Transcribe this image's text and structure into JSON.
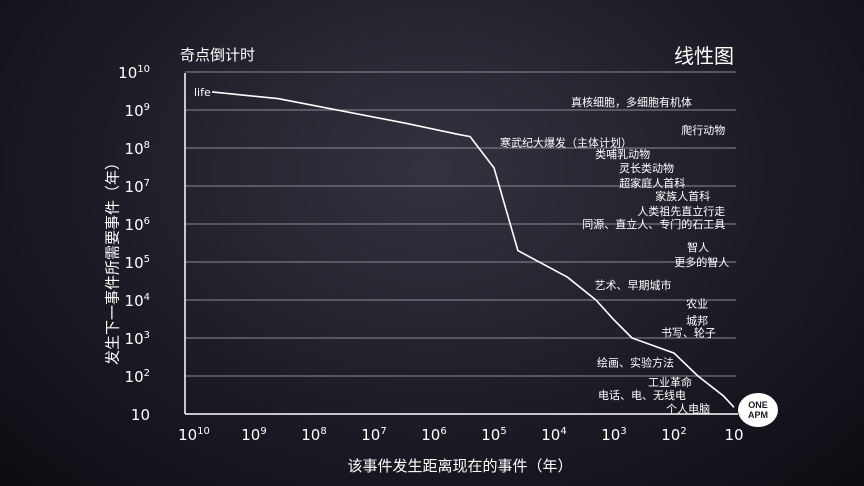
{
  "corner_title": "线性图",
  "logo": "ONE APM",
  "chart_data": {
    "type": "line",
    "title": "奇点倒计时",
    "xlabel": "该事件发生距离现在的事件（年）",
    "ylabel": "发生下一事件所需要事件（年）",
    "x_scale": "log-reversed",
    "y_scale": "log",
    "xlim": [
      10000000000,
      10
    ],
    "ylim": [
      10,
      10000000000
    ],
    "x_ticks": [
      {
        "base": "10",
        "exp": "10"
      },
      {
        "base": "10",
        "exp": "9"
      },
      {
        "base": "10",
        "exp": "8"
      },
      {
        "base": "10",
        "exp": "7"
      },
      {
        "base": "10",
        "exp": "6"
      },
      {
        "base": "10",
        "exp": "5"
      },
      {
        "base": "10",
        "exp": "4"
      },
      {
        "base": "10",
        "exp": "3"
      },
      {
        "base": "10",
        "exp": "2"
      },
      {
        "base": "10",
        "exp": ""
      }
    ],
    "y_ticks": [
      {
        "base": "10",
        "exp": "10"
      },
      {
        "base": "10",
        "exp": "9"
      },
      {
        "base": "10",
        "exp": "8"
      },
      {
        "base": "10",
        "exp": "7"
      },
      {
        "base": "10",
        "exp": "6"
      },
      {
        "base": "10",
        "exp": "5"
      },
      {
        "base": "10",
        "exp": "4"
      },
      {
        "base": "10",
        "exp": "3"
      },
      {
        "base": "10",
        "exp": "2"
      },
      {
        "base": "10",
        "exp": ""
      }
    ],
    "grid": "horizontal",
    "curve_x": [
      5000000000,
      400000000,
      3000000,
      400000,
      250000,
      100000,
      40000,
      6000,
      2000,
      1000,
      500,
      100,
      40,
      15,
      10
    ],
    "curve_y": [
      3000000000,
      2000000000,
      450000000,
      230000000,
      200000000,
      30000000,
      200000,
      40000,
      10000,
      3000,
      1000,
      400,
      100,
      30,
      15
    ],
    "annotations": [
      {
        "text": "life",
        "x": 10000000000,
        "y": 3000000000
      },
      {
        "text": "真核细胞，多细胞有机体",
        "x": 50,
        "y": 1600000000
      },
      {
        "text": "爬行动物",
        "x": 14,
        "y": 300000000
      },
      {
        "text": "寒武纪大爆发（主体计划）",
        "x": 500,
        "y": 140000000
      },
      {
        "text": "类哺乳动物",
        "x": 250,
        "y": 70000000
      },
      {
        "text": "灵长类动物",
        "x": 100,
        "y": 30000000
      },
      {
        "text": "超家庭人首科",
        "x": 65,
        "y": 12000000
      },
      {
        "text": "家族人首科",
        "x": 25,
        "y": 5500000
      },
      {
        "text": "人类祖先直立行走",
        "x": 14,
        "y": 2200000
      },
      {
        "text": "同源、直立人、专门的石工具",
        "x": 14,
        "y": 1000000
      },
      {
        "text": "智人",
        "x": 26,
        "y": 250000
      },
      {
        "text": "更多的智人",
        "x": 12,
        "y": 100000
      },
      {
        "text": "艺术、早期城市",
        "x": 110,
        "y": 25000
      },
      {
        "text": "农业",
        "x": 27,
        "y": 8000
      },
      {
        "text": "城邦",
        "x": 27,
        "y": 2900
      },
      {
        "text": "书写、轮子",
        "x": 20,
        "y": 1400
      },
      {
        "text": "绘画、实验方法",
        "x": 100,
        "y": 230
      },
      {
        "text": "工业革命",
        "x": 50,
        "y": 70
      },
      {
        "text": "电话、电、无线电",
        "x": 63,
        "y": 32
      },
      {
        "text": "个人电脑",
        "x": 25,
        "y": 14
      }
    ]
  }
}
